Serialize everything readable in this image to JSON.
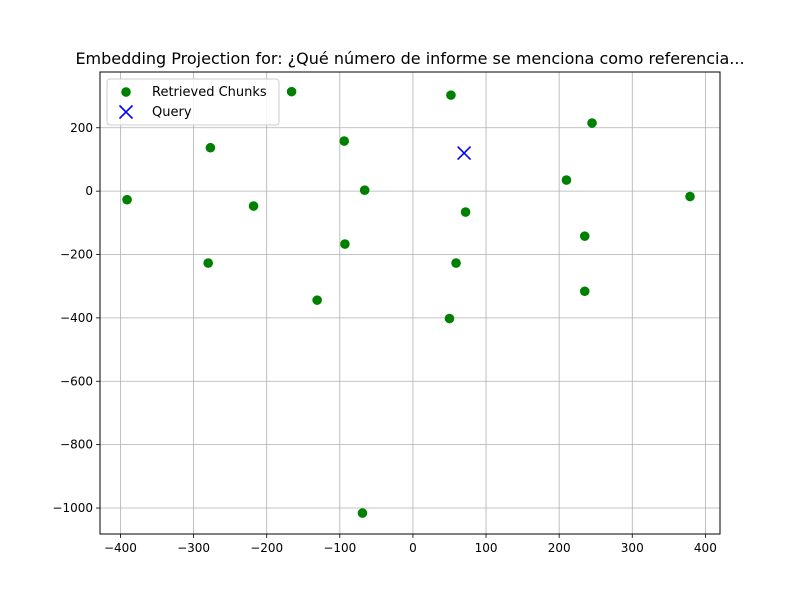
{
  "chart_data": {
    "type": "scatter",
    "title": "Embedding Projection for: ¿Qué número de informe se menciona como referencia...",
    "xlabel": "",
    "ylabel": "",
    "xlim": [
      -428,
      420
    ],
    "ylim": [
      -1082,
      376
    ],
    "xticks": [
      -400,
      -300,
      -200,
      -100,
      0,
      100,
      200,
      300,
      400
    ],
    "yticks": [
      -1000,
      -800,
      -600,
      -400,
      -200,
      0,
      200
    ],
    "xtick_labels": [
      "−400",
      "−300",
      "−200",
      "−100",
      "0",
      "100",
      "200",
      "300",
      "400"
    ],
    "ytick_labels": [
      "−1000",
      "−800",
      "−600",
      "−400",
      "−200",
      "0",
      "200"
    ],
    "grid": true,
    "legend_position": "top-left",
    "series": [
      {
        "name": "Retrieved Chunks",
        "marker": "circle",
        "color": "#008000",
        "points": [
          {
            "x": -391,
            "y": -27
          },
          {
            "x": -277,
            "y": 137
          },
          {
            "x": -280,
            "y": -227
          },
          {
            "x": -218,
            "y": -47
          },
          {
            "x": -166,
            "y": 314
          },
          {
            "x": -131,
            "y": -344
          },
          {
            "x": -94,
            "y": 158
          },
          {
            "x": -93,
            "y": -167
          },
          {
            "x": -66,
            "y": 3
          },
          {
            "x": -69,
            "y": -1016
          },
          {
            "x": 52,
            "y": 303
          },
          {
            "x": 50,
            "y": -402
          },
          {
            "x": 59,
            "y": -227
          },
          {
            "x": 72,
            "y": -66
          },
          {
            "x": 210,
            "y": 35
          },
          {
            "x": 245,
            "y": 215
          },
          {
            "x": 235,
            "y": -142
          },
          {
            "x": 235,
            "y": -316
          },
          {
            "x": 379,
            "y": -17
          }
        ]
      },
      {
        "name": "Query",
        "marker": "x",
        "color": "#0000ff",
        "points": [
          {
            "x": 70,
            "y": 120
          }
        ]
      }
    ]
  }
}
